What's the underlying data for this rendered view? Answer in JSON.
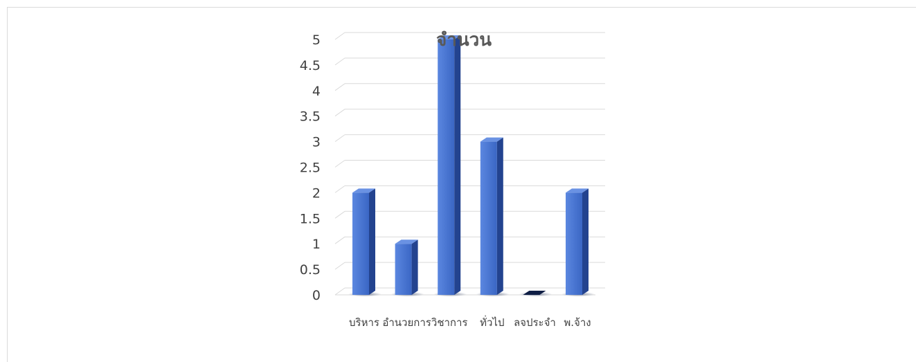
{
  "chart_data": {
    "type": "bar",
    "title": "จำนวน",
    "categories": [
      "บริหาร",
      "อำนวยการ",
      "วิชาการ",
      "ทั่วไป",
      "ลจประจำ",
      "พ.จ้าง"
    ],
    "values": [
      2,
      1,
      5,
      3,
      0,
      2
    ],
    "ylim": [
      0,
      5
    ],
    "y_ticks": [
      "0",
      "0.5",
      "1",
      "1.5",
      "2",
      "2.5",
      "3",
      "3.5",
      "4",
      "4.5",
      "5"
    ],
    "y_tick_values": [
      0,
      0.5,
      1,
      1.5,
      2,
      2.5,
      3,
      3.5,
      4,
      4.5,
      5
    ],
    "grid": true,
    "legend": "none",
    "colors": {
      "bar_front": "#3f6fcf",
      "bar_front_light": "#5b87e0",
      "bar_side": "#23438f",
      "bar_top": "#6a92e3",
      "grid": "#d9d9d9",
      "floor_shadow": "#1f2f55"
    }
  }
}
